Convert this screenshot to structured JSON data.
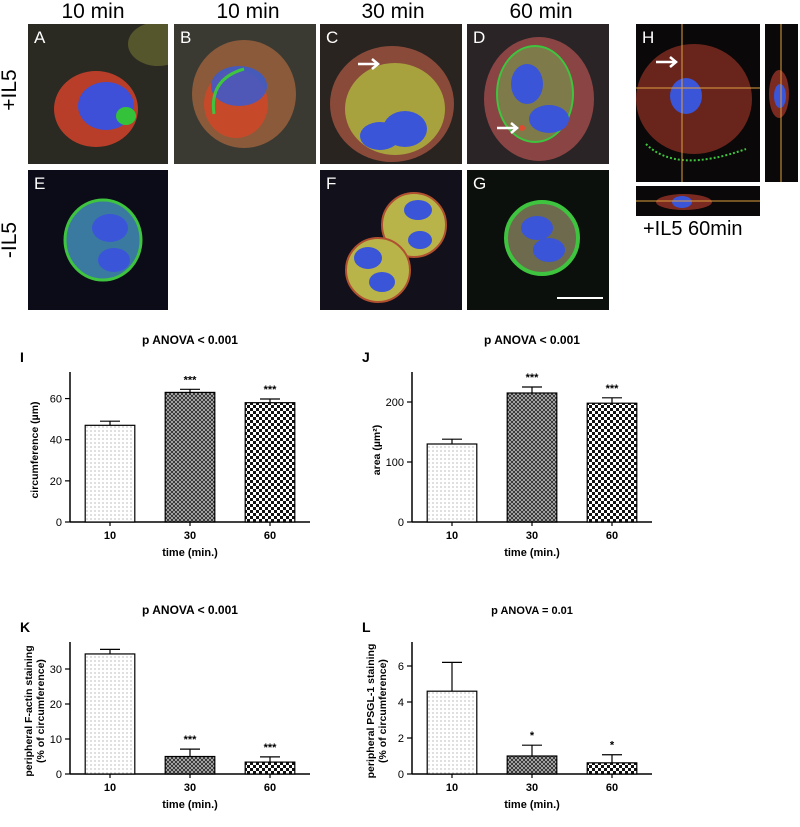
{
  "columns": [
    "10 min",
    "10 min",
    "30 min",
    "60 min"
  ],
  "rows": [
    "+IL5",
    "-IL5"
  ],
  "panels": {
    "A": "A",
    "B": "B",
    "C": "C",
    "D": "D",
    "E": "E",
    "F": "F",
    "G": "G",
    "H": "H"
  },
  "h_caption": "+IL5 60min",
  "colors": {
    "actin": "#d23a2a",
    "psgl1": "#3fbf3a",
    "nucleus": "#3b55e0"
  },
  "chart_data": [
    {
      "id": "I",
      "type": "bar",
      "title": "p ANOVA < 0.001",
      "categories": [
        "10",
        "30",
        "60"
      ],
      "values": [
        47,
        63,
        58
      ],
      "errors": [
        2,
        1.5,
        1.8
      ],
      "significance": [
        "",
        "***",
        "***"
      ],
      "patterns": [
        "dots",
        "cross",
        "checker"
      ],
      "xlabel": "time (min.)",
      "ylabel": "circumference (µm)",
      "ylim": [
        0,
        70
      ],
      "yticks": [
        0,
        20,
        40,
        60
      ]
    },
    {
      "id": "J",
      "type": "bar",
      "title": "p ANOVA < 0.001",
      "categories": [
        "10",
        "30",
        "60"
      ],
      "values": [
        130,
        215,
        198
      ],
      "errors": [
        8,
        10,
        9
      ],
      "significance": [
        "",
        "***",
        "***"
      ],
      "patterns": [
        "dots",
        "cross",
        "checker"
      ],
      "xlabel": "time (min.)",
      "ylabel": "area (µm²)",
      "ylim": [
        0,
        240
      ],
      "yticks": [
        0,
        100,
        200
      ]
    },
    {
      "id": "K",
      "type": "bar",
      "title": "p ANOVA < 0.001",
      "categories": [
        "10",
        "30",
        "60"
      ],
      "values": [
        34.3,
        5,
        3.4
      ],
      "errors": [
        1.3,
        2.1,
        1.5
      ],
      "significance": [
        "",
        "***",
        "***"
      ],
      "patterns": [
        "dots",
        "cross",
        "checker"
      ],
      "xlabel": "time (min.)",
      "ylabel": "peripheral F-actin staining (% of circumference)",
      "ylim": [
        0,
        36
      ],
      "yticks": [
        0,
        10,
        20,
        30
      ]
    },
    {
      "id": "L",
      "type": "bar",
      "title": "p ANOVA = 0.01",
      "categories": [
        "10",
        "30",
        "60"
      ],
      "values": [
        4.6,
        1.0,
        0.62
      ],
      "errors": [
        1.6,
        0.6,
        0.45
      ],
      "significance": [
        "",
        "*",
        "*"
      ],
      "patterns": [
        "dots",
        "cross",
        "checker"
      ],
      "xlabel": "time (min.)",
      "ylabel": "peripheral PSGL-1 staining (% of circumference)",
      "ylim": [
        0,
        7
      ],
      "yticks": [
        0,
        2,
        4,
        6
      ]
    }
  ]
}
